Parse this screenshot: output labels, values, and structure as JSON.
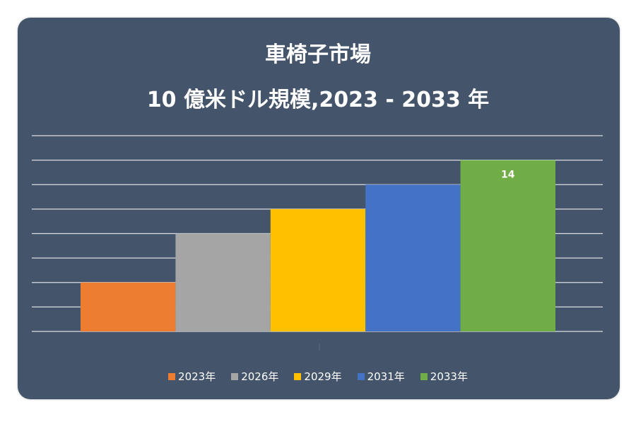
{
  "chart_data": {
    "type": "bar",
    "title": "車椅子市場",
    "subtitle": "10 億米ドル規模,2023 - 2033 年",
    "categories": [
      "2023年",
      "2026年",
      "2029年",
      "2031年",
      "2033年"
    ],
    "values": [
      4,
      8,
      10,
      12,
      14
    ],
    "data_labels": {
      "4": "14"
    },
    "colors": [
      "#ed7d31",
      "#a5a5a5",
      "#ffc000",
      "#4472c4",
      "#70ad47"
    ],
    "ylim": [
      0,
      16
    ],
    "grid_step": 2,
    "grid": true,
    "legend": "bottom",
    "background": "#44546a"
  }
}
